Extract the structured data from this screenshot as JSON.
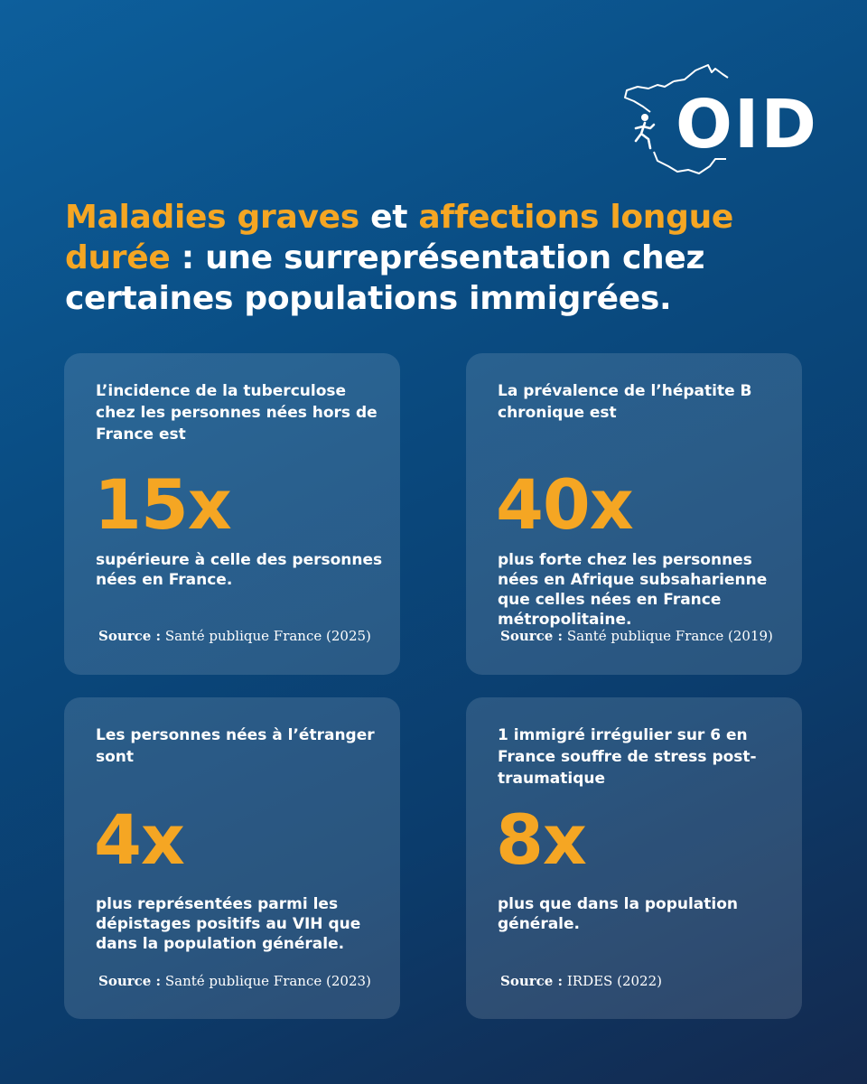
{
  "logo": {
    "text": "OID",
    "icon": "france-map-runner-icon"
  },
  "headline": {
    "part1": "Maladies graves",
    "part2": " et ",
    "part3": "affections longue durée",
    "part4": " : une surreprésentation chez certaines populations immigrées."
  },
  "colors": {
    "accent": "#f5a623",
    "text": "#ffffff",
    "background_top": "#0d5f9c",
    "background_bottom": "#14294e"
  },
  "cards": [
    {
      "intro": "L’incidence de la tuberculose chez les personnes nées hors de France est",
      "stat": "15x",
      "description": " supérieure à celle des personnes nées en France.",
      "source_label": "Source :",
      "source_text": " Santé publique France (2025)"
    },
    {
      "intro": "La prévalence de l’hépatite B chronique est",
      "stat": "40x",
      "description": "plus forte chez les personnes nées en Afrique subsaharienne que celles nées en France métropolitaine.",
      "source_label": "Source :",
      "source_text": " Santé publique France (2019)"
    },
    {
      "intro": "Les personnes nées à l’étranger sont",
      "stat": "4x",
      "description": "plus représentées parmi les dépistages positifs au VIH que dans la population générale.",
      "source_label": "Source :",
      "source_text": " Santé publique France (2023)"
    },
    {
      "intro": "1 immigré irrégulier sur 6 en France souffre de stress post-traumatique",
      "stat": "8x",
      "description": "plus que dans la population générale.",
      "source_label": "Source :",
      "source_text": " IRDES (2022)"
    }
  ]
}
